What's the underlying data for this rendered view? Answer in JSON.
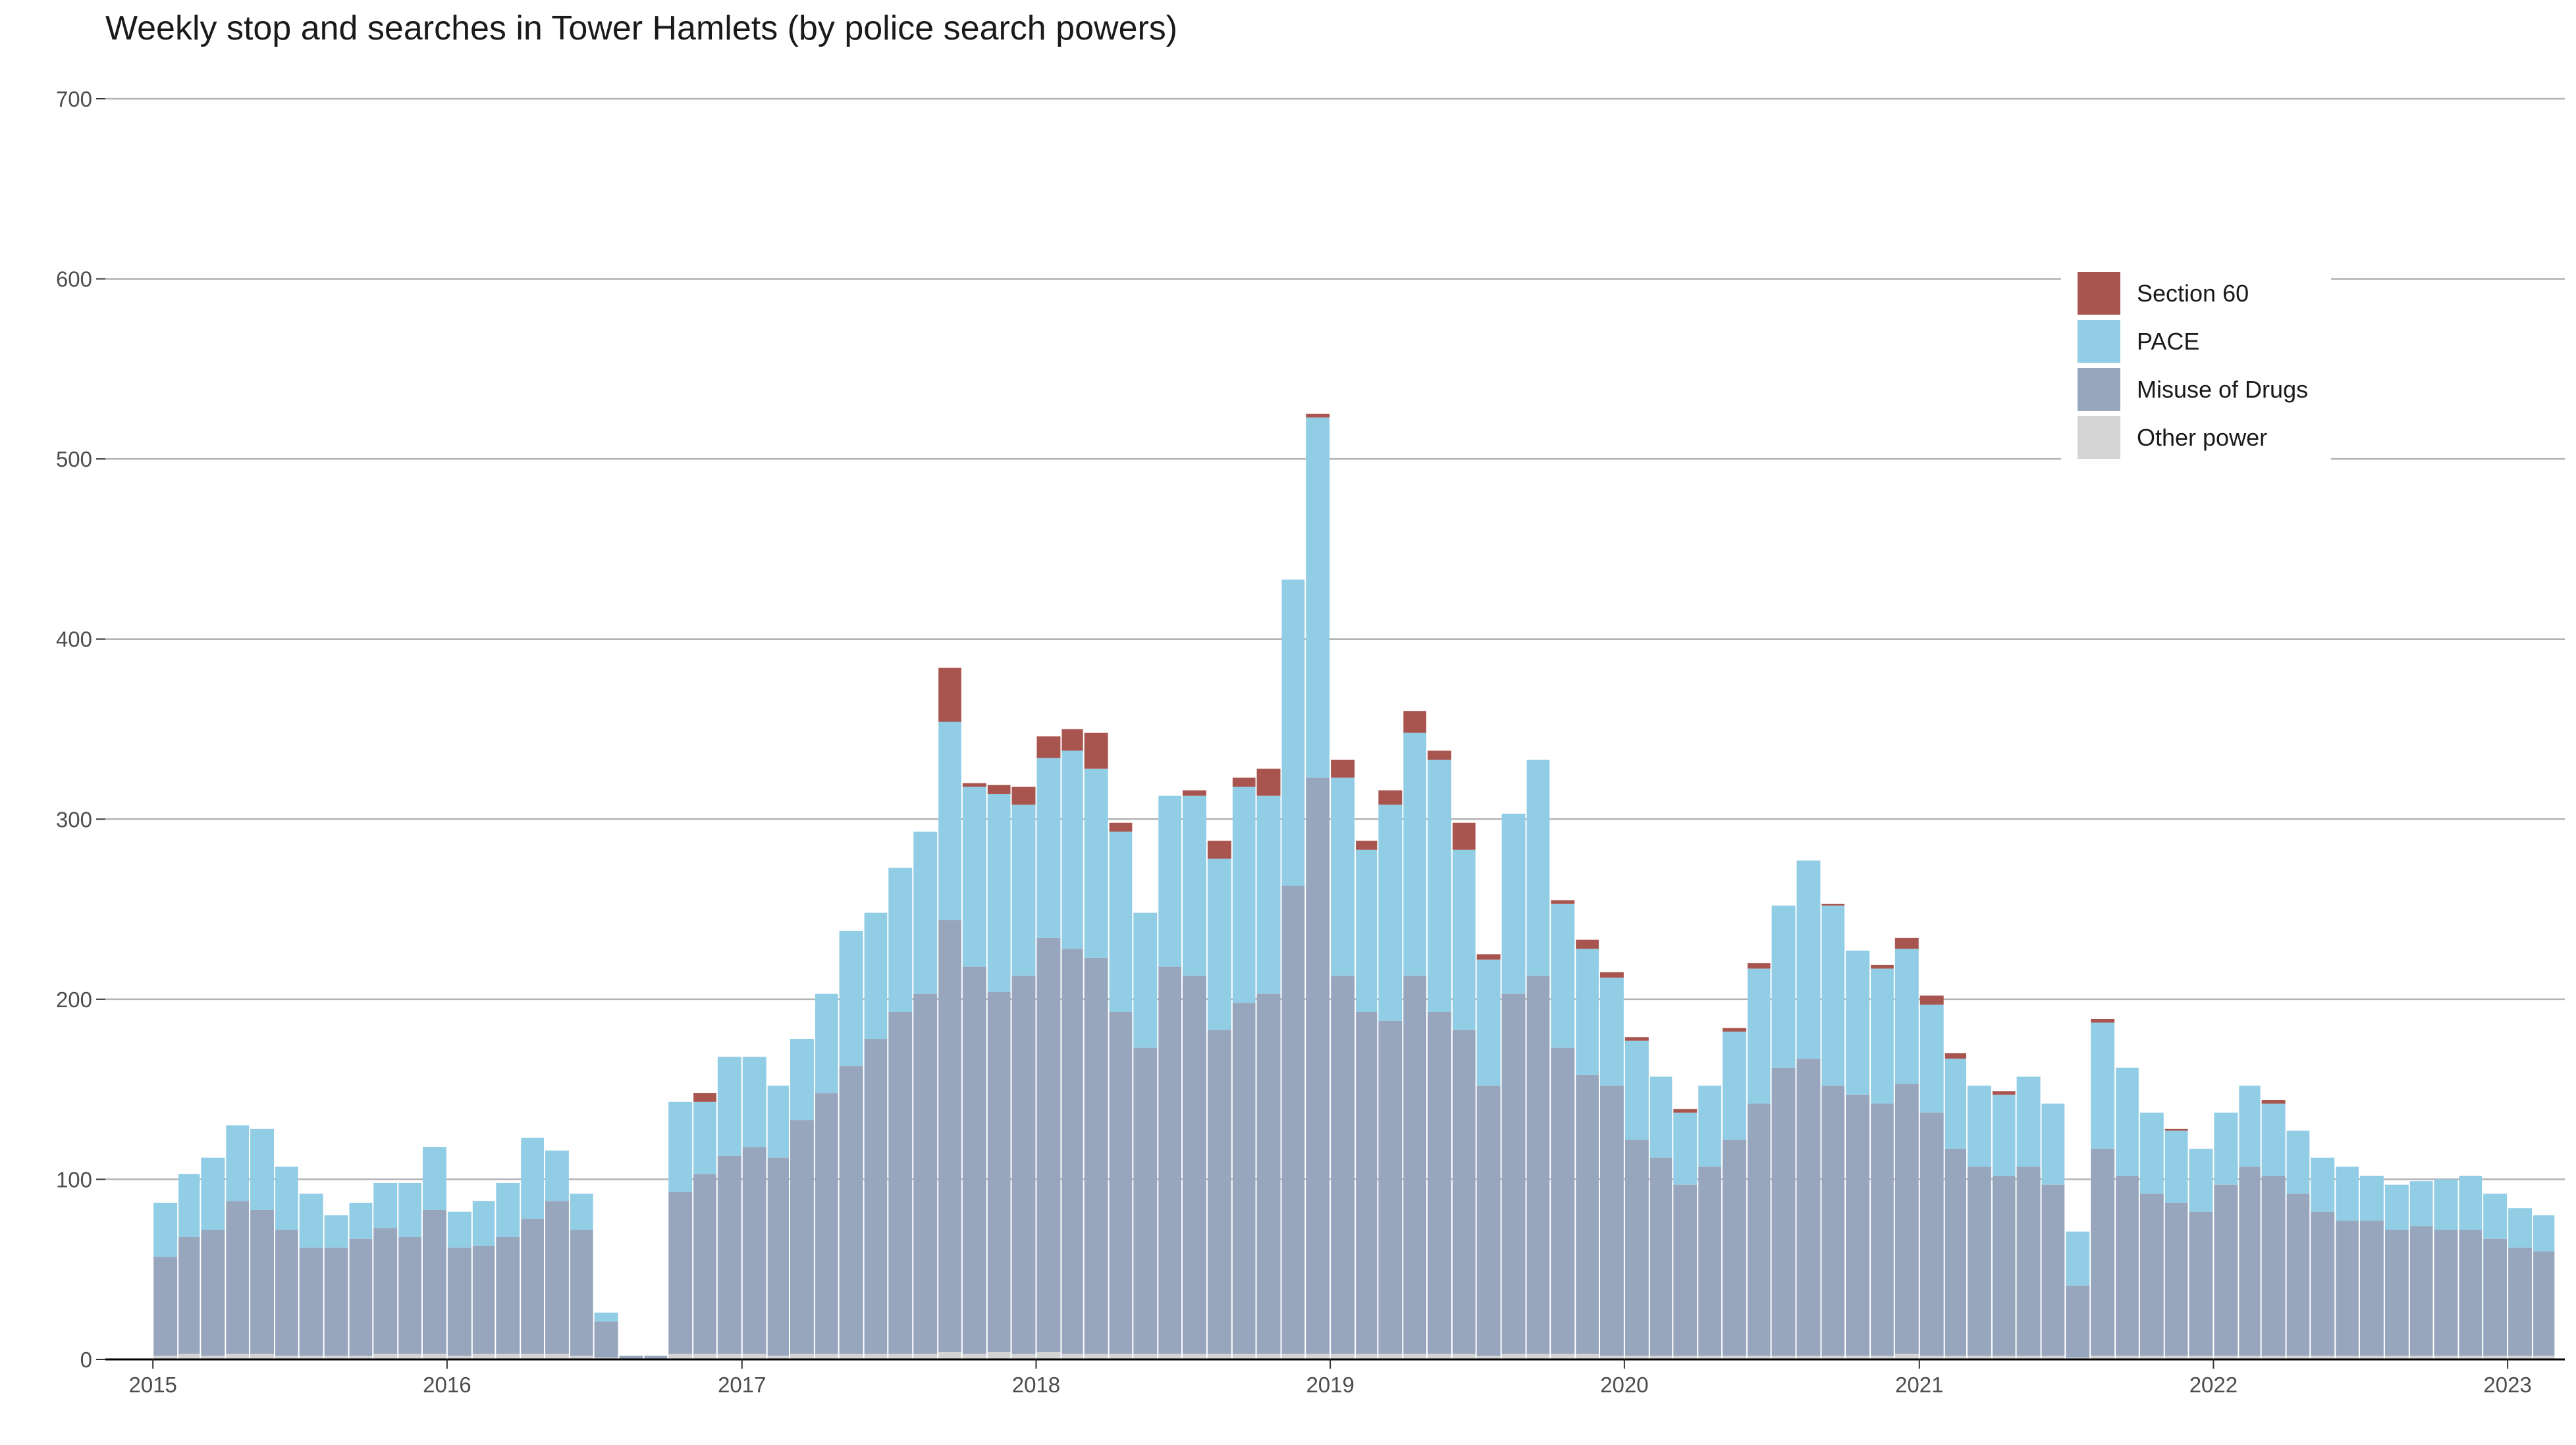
{
  "chart_data": {
    "type": "bar",
    "stacked": true,
    "title": "Weekly stop and searches in Tower Hamlets (by police search powers)",
    "xlabel": "",
    "ylabel": "",
    "ylim": [
      0,
      700
    ],
    "yticks": [
      0,
      100,
      200,
      300,
      400,
      500,
      600,
      700
    ],
    "xticks": [
      "2015",
      "2016",
      "2017",
      "2018",
      "2019",
      "2020",
      "2021",
      "2022",
      "2023"
    ],
    "grid": "horizontal",
    "legend_position": "top-right",
    "x_start": "2014-11-03",
    "x_end": "2023-03-13",
    "categories": [
      "2015-01",
      "2015-02",
      "2015-03",
      "2015-04",
      "2015-05",
      "2015-06",
      "2015-07",
      "2015-08",
      "2015-09",
      "2015-10",
      "2015-11",
      "2015-12",
      "2016-01",
      "2016-02",
      "2016-03",
      "2016-04",
      "2016-05",
      "2016-06",
      "2016-07",
      "2016-08",
      "2016-09",
      "2016-10",
      "2016-11",
      "2016-12",
      "2017-01",
      "2017-02",
      "2017-03",
      "2017-04",
      "2017-05",
      "2017-06",
      "2017-07",
      "2017-08",
      "2017-09",
      "2017-10",
      "2017-11",
      "2017-12",
      "2018-01",
      "2018-02",
      "2018-03",
      "2018-04",
      "2018-05",
      "2018-06",
      "2018-07",
      "2018-08",
      "2018-09",
      "2018-10",
      "2018-11",
      "2018-12",
      "2019-01",
      "2019-02",
      "2019-03",
      "2019-04",
      "2019-05",
      "2019-06",
      "2019-07",
      "2019-08",
      "2019-09",
      "2019-10",
      "2019-11",
      "2019-12",
      "2020-01",
      "2020-02",
      "2020-03",
      "2020-04",
      "2020-05",
      "2020-06",
      "2020-07",
      "2020-08",
      "2020-09",
      "2020-10",
      "2020-11",
      "2020-12",
      "2021-01",
      "2021-02",
      "2021-03",
      "2021-04",
      "2021-05",
      "2021-06",
      "2021-07",
      "2021-08",
      "2021-09",
      "2021-10",
      "2021-11",
      "2021-12",
      "2022-01",
      "2022-02",
      "2022-03",
      "2022-04",
      "2022-05",
      "2022-06",
      "2022-07",
      "2022-08",
      "2022-09",
      "2022-10",
      "2022-11",
      "2022-12",
      "2023-01",
      "2023-02"
    ],
    "series": [
      {
        "name": "Section 60",
        "color": "#a8554f",
        "values": [
          0,
          0,
          0,
          0,
          0,
          0,
          0,
          0,
          0,
          0,
          0,
          0,
          0,
          0,
          0,
          0,
          0,
          0,
          0,
          0,
          0,
          0,
          5,
          0,
          0,
          0,
          0,
          0,
          0,
          0,
          0,
          0,
          30,
          2,
          5,
          10,
          12,
          12,
          20,
          5,
          0,
          0,
          3,
          10,
          5,
          15,
          0,
          2,
          10,
          5,
          8,
          12,
          5,
          15,
          3,
          0,
          0,
          2,
          5,
          3,
          2,
          0,
          2,
          0,
          2,
          3,
          0,
          0,
          1,
          0,
          2,
          6,
          5,
          3,
          0,
          2,
          0,
          0,
          0,
          2,
          0,
          0,
          1,
          0,
          0,
          0,
          2,
          0,
          0,
          0,
          0,
          0,
          0,
          0,
          0,
          0,
          0,
          0
        ]
      },
      {
        "name": "PACE",
        "color": "#92cde6",
        "values": [
          30,
          35,
          40,
          42,
          45,
          35,
          30,
          18,
          20,
          25,
          30,
          35,
          20,
          25,
          30,
          45,
          28,
          20,
          5,
          0,
          0,
          50,
          40,
          55,
          50,
          40,
          45,
          55,
          75,
          70,
          80,
          90,
          110,
          100,
          110,
          95,
          100,
          110,
          105,
          100,
          75,
          95,
          100,
          95,
          120,
          110,
          170,
          200,
          110,
          90,
          120,
          135,
          140,
          100,
          70,
          100,
          120,
          80,
          70,
          60,
          55,
          45,
          40,
          45,
          60,
          75,
          90,
          110,
          100,
          80,
          75,
          75,
          60,
          50,
          45,
          45,
          50,
          45,
          30,
          70,
          60,
          45,
          40,
          35,
          40,
          45,
          40,
          35,
          30,
          30,
          25,
          25,
          25,
          28,
          30,
          25,
          22,
          20
        ]
      },
      {
        "name": "Misuse of Drugs",
        "color": "#97a6bd",
        "values": [
          55,
          65,
          70,
          85,
          80,
          70,
          60,
          60,
          65,
          70,
          65,
          80,
          60,
          60,
          65,
          75,
          85,
          70,
          20,
          2,
          2,
          90,
          100,
          110,
          115,
          110,
          130,
          145,
          160,
          175,
          190,
          200,
          240,
          215,
          200,
          210,
          230,
          225,
          220,
          190,
          170,
          215,
          210,
          180,
          195,
          200,
          260,
          320,
          210,
          190,
          185,
          210,
          190,
          180,
          150,
          200,
          210,
          170,
          155,
          150,
          120,
          110,
          95,
          105,
          120,
          140,
          160,
          165,
          150,
          145,
          140,
          150,
          135,
          115,
          105,
          100,
          105,
          95,
          40,
          115,
          100,
          90,
          85,
          80,
          95,
          105,
          100,
          90,
          80,
          75,
          75,
          70,
          72,
          70,
          70,
          65,
          60,
          58
        ]
      },
      {
        "name": "Other power",
        "color": "#d4d4d4",
        "values": [
          2,
          3,
          2,
          3,
          3,
          2,
          2,
          2,
          2,
          3,
          3,
          3,
          2,
          3,
          3,
          3,
          3,
          2,
          1,
          0,
          0,
          3,
          3,
          3,
          3,
          2,
          3,
          3,
          3,
          3,
          3,
          3,
          4,
          3,
          4,
          3,
          4,
          3,
          3,
          3,
          3,
          3,
          3,
          3,
          3,
          3,
          3,
          3,
          3,
          3,
          3,
          3,
          3,
          3,
          2,
          3,
          3,
          3,
          3,
          2,
          2,
          2,
          2,
          2,
          2,
          2,
          2,
          2,
          2,
          2,
          2,
          3,
          2,
          2,
          2,
          2,
          2,
          2,
          1,
          2,
          2,
          2,
          2,
          2,
          2,
          2,
          2,
          2,
          2,
          2,
          2,
          2,
          2,
          2,
          2,
          2,
          2,
          2
        ]
      }
    ],
    "legend": [
      "Section 60",
      "PACE",
      "Misuse of Drugs",
      "Other power"
    ]
  }
}
